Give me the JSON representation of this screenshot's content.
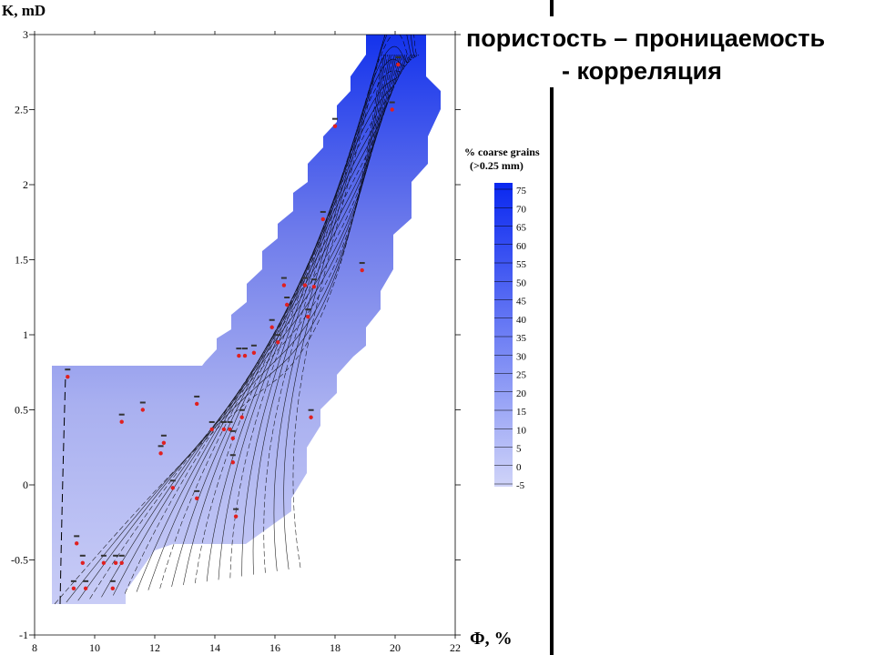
{
  "title": {
    "line1": "пористость – проницаемость",
    "line2": "- корреляция"
  },
  "chart_data": {
    "type": "scatter",
    "ylabel": "K, mD",
    "xlabel": "Φ, %",
    "xlim": [
      8,
      22
    ],
    "ylim": [
      -1,
      3
    ],
    "x_ticks": [
      "8",
      "10",
      "12",
      "14",
      "16",
      "18",
      "20",
      "22"
    ],
    "y_ticks": [
      "-1",
      "-0.5",
      "0",
      "0.5",
      "1",
      "1.5",
      "2",
      "2.5",
      "3"
    ],
    "colorbar": {
      "title_line1": "% coarse grains",
      "title_line2": "(>0.25 mm)",
      "levels": [
        "-5",
        "0",
        "5",
        "10",
        "15",
        "20",
        "25",
        "30",
        "35",
        "40",
        "45",
        "50",
        "55",
        "60",
        "65",
        "70",
        "75"
      ],
      "min_color": "#d0d4f8",
      "max_color": "#0a28f0"
    },
    "point_color": "#e02020",
    "points": [
      {
        "x": 9.1,
        "y": 0.72
      },
      {
        "x": 10.9,
        "y": 0.42
      },
      {
        "x": 11.6,
        "y": 0.5
      },
      {
        "x": 12.3,
        "y": 0.28
      },
      {
        "x": 12.2,
        "y": 0.21
      },
      {
        "x": 12.6,
        "y": -0.02
      },
      {
        "x": 13.4,
        "y": -0.09
      },
      {
        "x": 13.4,
        "y": 0.54
      },
      {
        "x": 13.9,
        "y": 0.37
      },
      {
        "x": 14.3,
        "y": 0.37
      },
      {
        "x": 14.5,
        "y": 0.37
      },
      {
        "x": 14.6,
        "y": 0.31
      },
      {
        "x": 14.6,
        "y": 0.15
      },
      {
        "x": 14.7,
        "y": -0.21
      },
      {
        "x": 14.9,
        "y": 0.45
      },
      {
        "x": 14.8,
        "y": 0.86
      },
      {
        "x": 15.0,
        "y": 0.86
      },
      {
        "x": 15.3,
        "y": 0.88
      },
      {
        "x": 15.9,
        "y": 1.05
      },
      {
        "x": 16.1,
        "y": 0.95
      },
      {
        "x": 16.3,
        "y": 1.33
      },
      {
        "x": 16.4,
        "y": 1.2
      },
      {
        "x": 17.0,
        "y": 1.33
      },
      {
        "x": 17.3,
        "y": 1.32
      },
      {
        "x": 17.1,
        "y": 1.12
      },
      {
        "x": 17.2,
        "y": 0.45
      },
      {
        "x": 17.6,
        "y": 1.77
      },
      {
        "x": 18.0,
        "y": 2.39
      },
      {
        "x": 18.9,
        "y": 1.43
      },
      {
        "x": 19.9,
        "y": 2.5
      },
      {
        "x": 20.1,
        "y": 2.8
      },
      {
        "x": 9.4,
        "y": -0.39
      },
      {
        "x": 9.6,
        "y": -0.52
      },
      {
        "x": 9.3,
        "y": -0.69
      },
      {
        "x": 9.7,
        "y": -0.69
      },
      {
        "x": 10.3,
        "y": -0.52
      },
      {
        "x": 10.7,
        "y": -0.52
      },
      {
        "x": 10.9,
        "y": -0.52
      },
      {
        "x": 10.6,
        "y": -0.69
      }
    ]
  }
}
